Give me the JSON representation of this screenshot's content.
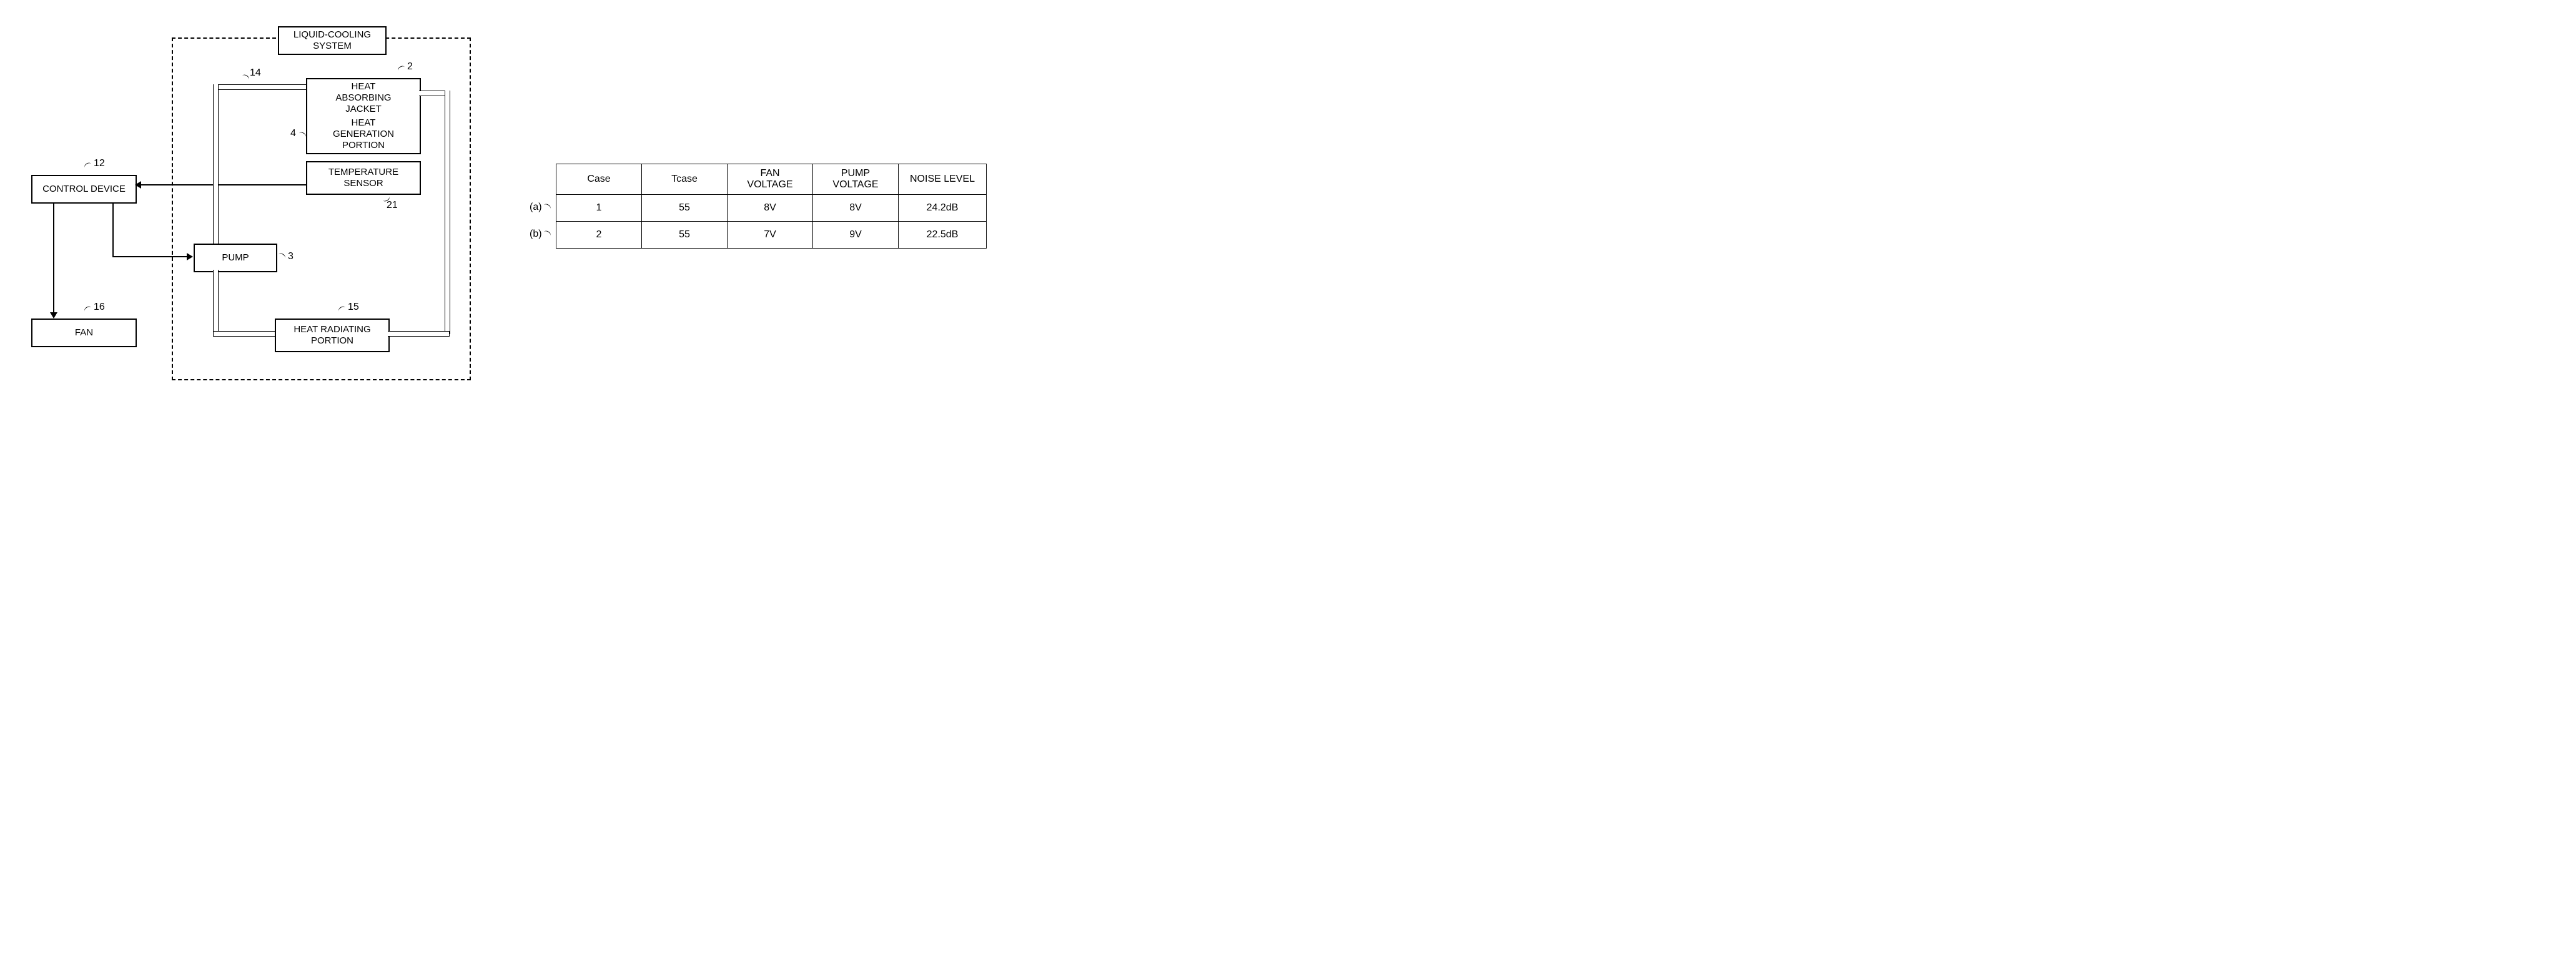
{
  "diagram": {
    "title": "LIQUID-COOLING\nSYSTEM",
    "control_device": "CONTROL DEVICE",
    "fan": "FAN",
    "pump": "PUMP",
    "heat_absorbing_jacket": "HEAT\nABSORBING\nJACKET",
    "heat_generation_portion": "HEAT\nGENERATION\nPORTION",
    "temperature_sensor": "TEMPERATURE\nSENSOR",
    "heat_radiating_portion": "HEAT RADIATING\nPORTION",
    "refs": {
      "control_device": "12",
      "fan": "16",
      "pump": "3",
      "jacket": "2",
      "portion": "4",
      "sensor": "21",
      "radiating": "15",
      "pipe": "14"
    }
  },
  "table": {
    "headers": [
      "Case",
      "Tcase",
      "FAN\nVOLTAGE",
      "PUMP\nVOLTAGE",
      "NOISE LEVEL"
    ],
    "rows": [
      {
        "label": "(a)",
        "cells": [
          "1",
          "55",
          "8V",
          "8V",
          "24.2dB"
        ]
      },
      {
        "label": "(b)",
        "cells": [
          "2",
          "55",
          "7V",
          "9V",
          "22.5dB"
        ]
      }
    ],
    "colors": {
      "border": "#000000",
      "background": "#ffffff"
    }
  }
}
